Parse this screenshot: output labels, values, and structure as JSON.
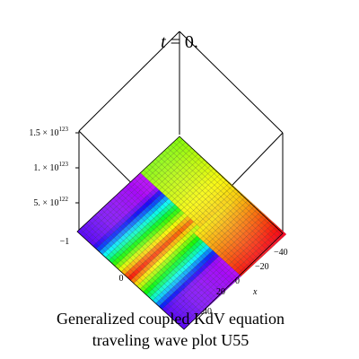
{
  "chart_data": {
    "type": "surface",
    "title_var": "t",
    "title_rest": " = 0.",
    "xlabel": "x",
    "x_ticks": [
      "40",
      "20",
      "0",
      "−20",
      "−40"
    ],
    "y_ticks": [
      "0",
      "−1"
    ],
    "z_ticks": [
      "5. × 10",
      "1. × 10",
      "1.5 × 10"
    ],
    "z_tick_exponents": [
      "122",
      "123",
      "123"
    ],
    "zlim": [
      0,
      1.5e+123
    ],
    "caption_line1": "Generalized coupled KdV equation",
    "caption_line2": "traveling wave plot U55",
    "colormap": "rainbow (Maple default)",
    "box": "on",
    "grid": "on"
  }
}
